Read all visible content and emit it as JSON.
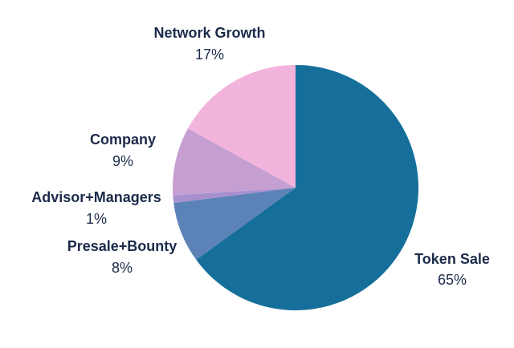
{
  "chart_data": {
    "type": "pie",
    "title": "",
    "start_angle_deg": 0,
    "direction": "clockwise",
    "slices": [
      {
        "label": "Token Sale",
        "value": 65,
        "value_label": "65%",
        "color": "#156f9a"
      },
      {
        "label": "Presale+Bounty",
        "value": 8,
        "value_label": "8%",
        "color": "#5b83b8"
      },
      {
        "label": "Advisor+Managers",
        "value": 1,
        "value_label": "1%",
        "color": "#a890cf"
      },
      {
        "label": "Company",
        "value": 9,
        "value_label": "9%",
        "color": "#c59fd1"
      },
      {
        "label": "Network Growth",
        "value": 17,
        "value_label": "17%",
        "color": "#f2b3dc"
      }
    ]
  }
}
